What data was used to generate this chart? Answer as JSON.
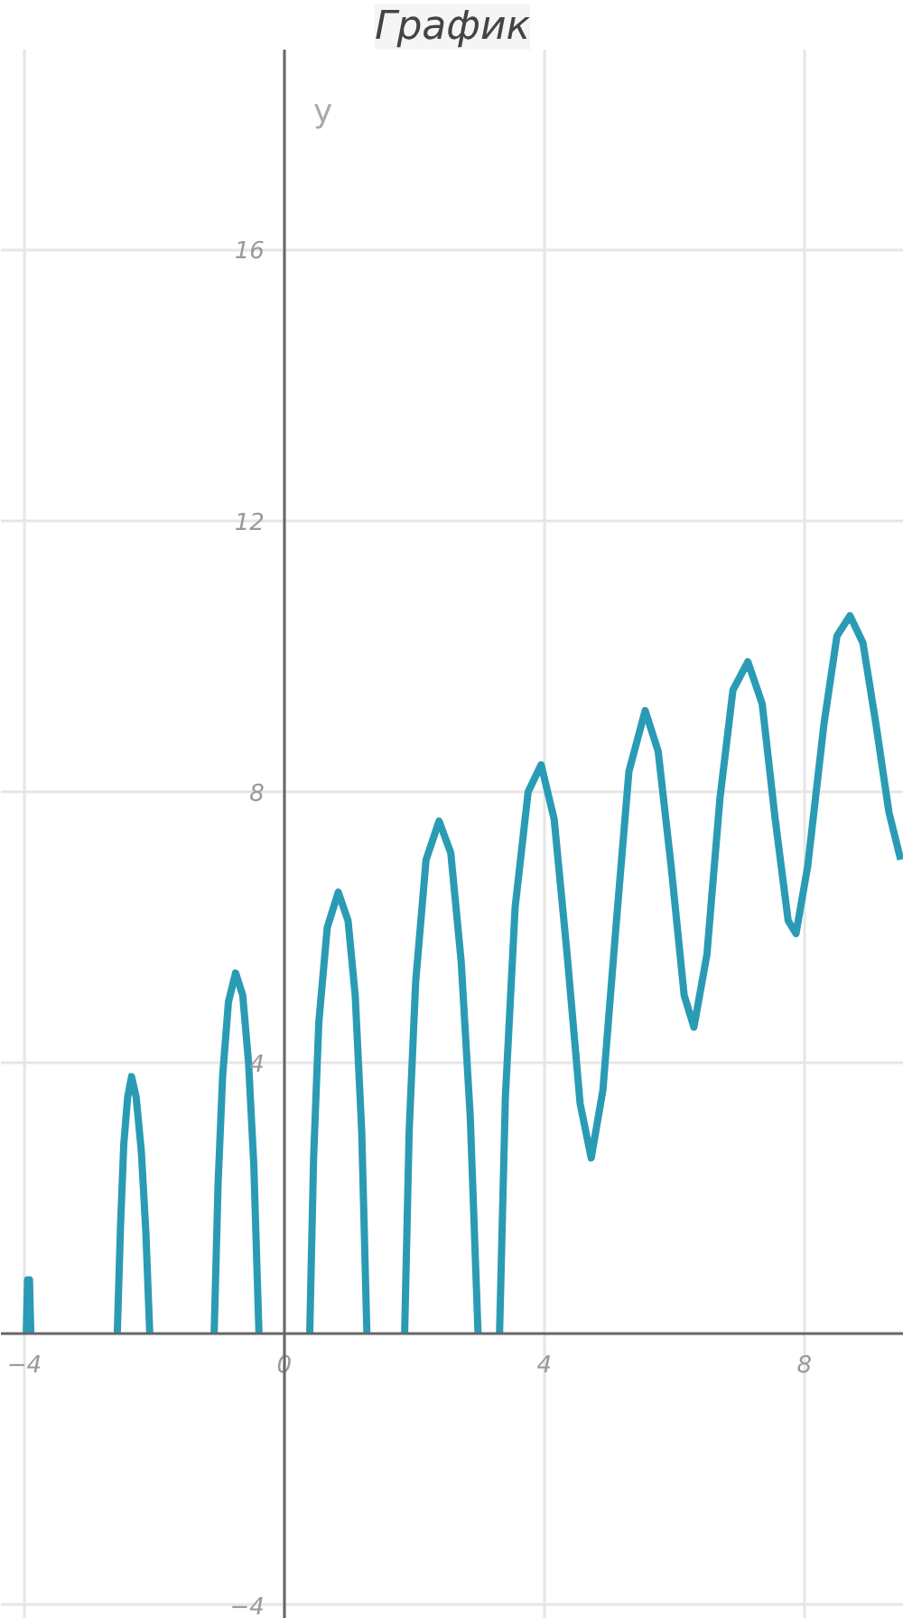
{
  "chart_data": {
    "type": "line",
    "title": "График",
    "ylabel": "y",
    "x": [
      -3.97,
      -3.95,
      -3.92,
      -3.9,
      -3.0,
      -2.57,
      -2.52,
      -2.47,
      -2.41,
      -2.35,
      -2.28,
      -2.2,
      -2.13,
      -2.07,
      -1.5,
      -1.08,
      -1.02,
      -0.95,
      -0.86,
      -0.75,
      -0.64,
      -0.55,
      -0.47,
      -0.39,
      0.0,
      0.39,
      0.45,
      0.53,
      0.66,
      0.83,
      0.98,
      1.09,
      1.19,
      1.27,
      1.5,
      1.85,
      1.92,
      2.02,
      2.18,
      2.38,
      2.56,
      2.72,
      2.86,
      2.98,
      3.15,
      3.31,
      3.4,
      3.55,
      3.75,
      3.95,
      4.15,
      4.35,
      4.55,
      4.72,
      4.9,
      5.1,
      5.3,
      5.55,
      5.75,
      5.95,
      6.15,
      6.3,
      6.5,
      6.7,
      6.9,
      7.13,
      7.35,
      7.55,
      7.75,
      7.87,
      8.05,
      8.3,
      8.5,
      8.7,
      8.9,
      9.1,
      9.3,
      9.48
    ],
    "series": [
      {
        "color": "#2a9bb5",
        "values": [
          0,
          0.8,
          0.8,
          0,
          null,
          0,
          1.6,
          2.8,
          3.5,
          3.8,
          3.5,
          2.7,
          1.5,
          0,
          null,
          0,
          2.2,
          3.8,
          4.9,
          5.33,
          5.0,
          4.0,
          2.5,
          0,
          null,
          0,
          2.6,
          4.6,
          6.0,
          6.52,
          6.1,
          5.0,
          3.0,
          0,
          null,
          0,
          3.0,
          5.2,
          7.0,
          7.57,
          7.1,
          5.5,
          3.2,
          0,
          null,
          0,
          3.5,
          6.3,
          8.0,
          8.4,
          7.6,
          5.6,
          3.4,
          2.6,
          3.6,
          6.0,
          8.3,
          9.2,
          8.6,
          6.9,
          5.0,
          4.53,
          5.6,
          7.9,
          9.5,
          9.92,
          9.3,
          7.6,
          6.1,
          5.91,
          6.9,
          9.0,
          10.3,
          10.6,
          10.2,
          9.0,
          7.7,
          7.0
        ]
      }
    ],
    "xlim": [
      -4.36,
      9.53
    ],
    "ylim": [
      -4.2,
      18.95
    ],
    "xticks": [
      -4,
      0,
      4,
      8
    ],
    "yticks": [
      -4,
      4,
      8,
      12,
      16
    ],
    "grid": true,
    "line_style": "solid"
  }
}
